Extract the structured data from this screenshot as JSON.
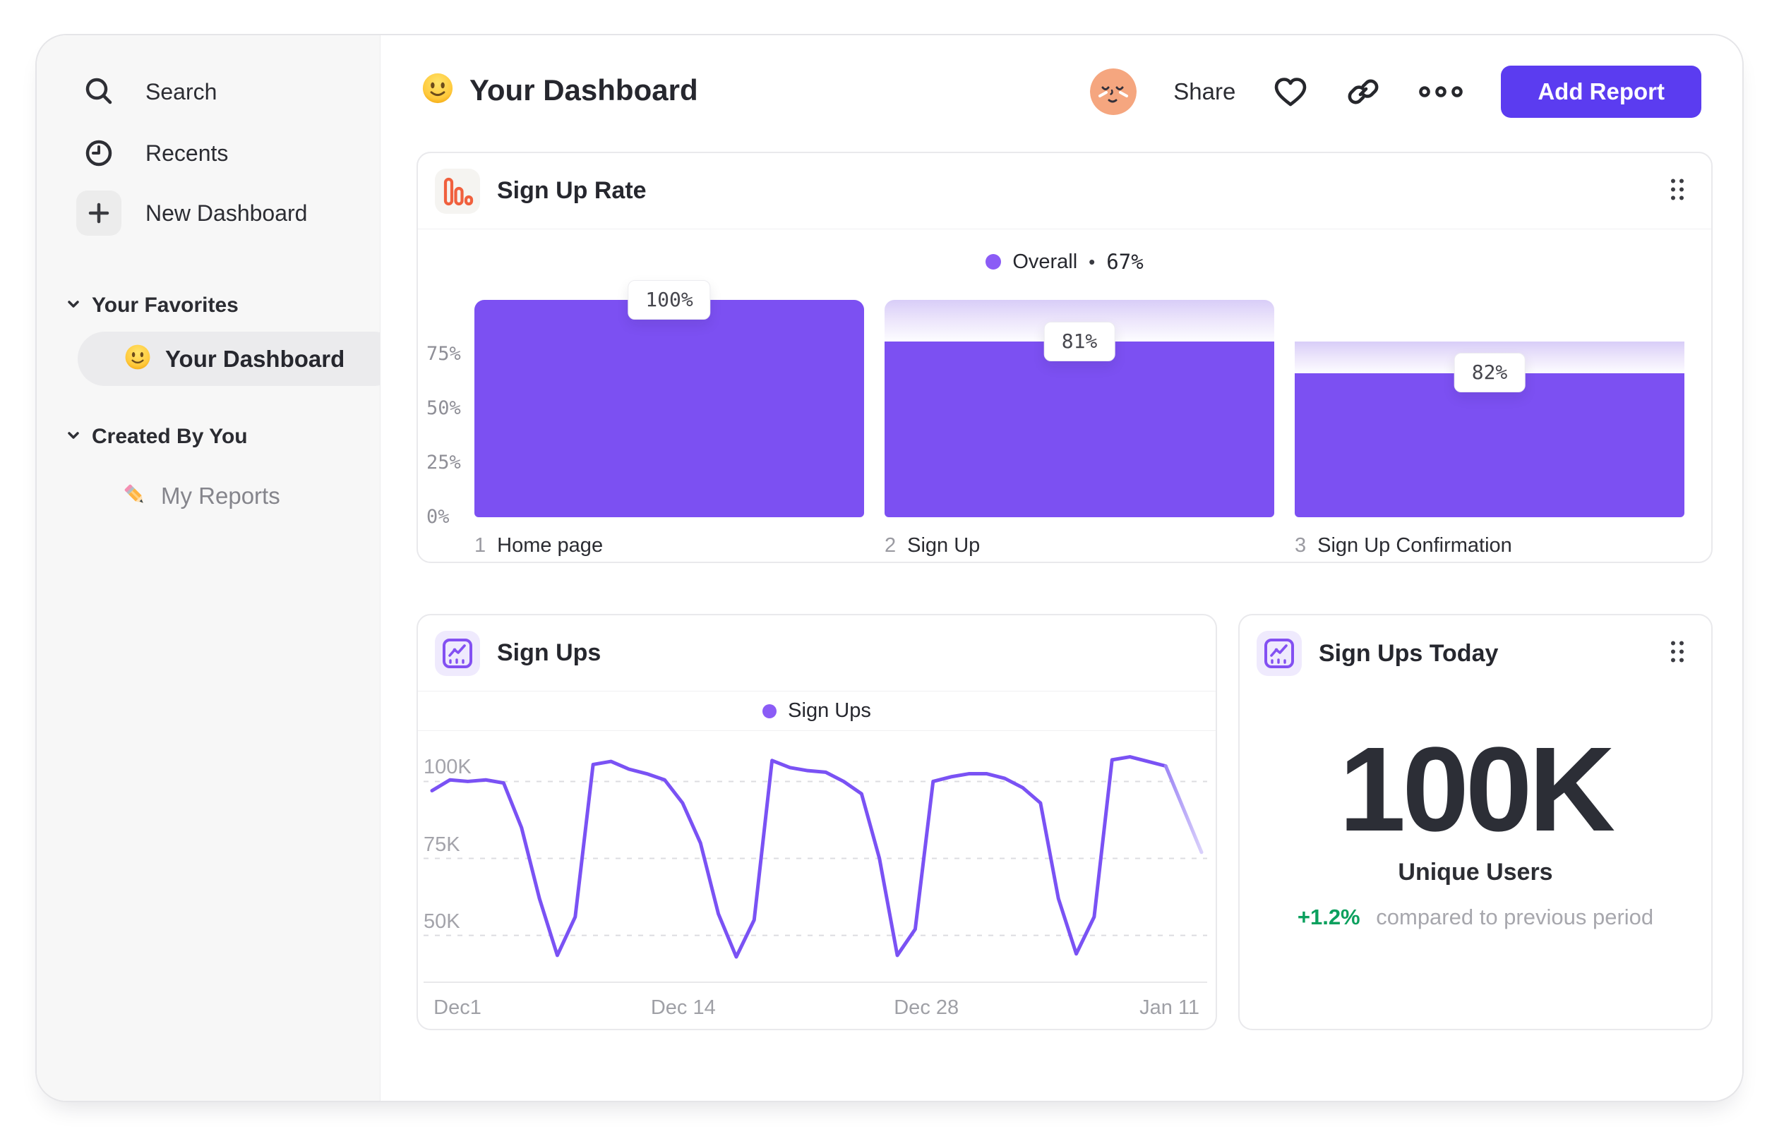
{
  "sidebar": {
    "items": [
      {
        "label": "Search"
      },
      {
        "label": "Recents"
      },
      {
        "label": "New Dashboard"
      }
    ],
    "sections": [
      {
        "title": "Your Favorites",
        "items": [
          {
            "label": "Your Dashboard",
            "selected": true
          }
        ]
      },
      {
        "title": "Created By You",
        "items": [
          {
            "label": "My Reports",
            "selected": false
          }
        ]
      }
    ]
  },
  "header": {
    "title": "Your Dashboard",
    "share_label": "Share",
    "add_report_label": "Add Report"
  },
  "cards": {
    "signup_rate": {
      "title": "Sign Up Rate",
      "legend": {
        "label": "Overall",
        "separator": "•",
        "value": "67%"
      }
    },
    "signups": {
      "title": "Sign Ups",
      "legend": {
        "label": "Sign Ups"
      }
    },
    "signups_today": {
      "title": "Sign Ups Today",
      "value": "100K",
      "caption": "Unique Users",
      "delta": "+1.2%",
      "delta_caption": "compared to previous period"
    }
  },
  "colors": {
    "bar_purple": "#7c50f2",
    "legend_dot": "#8b5cf6",
    "line_purple": "#7a52f4",
    "line_faded": "#cfc4fa",
    "button_purple": "#5b3cf0",
    "green": "#0ba05e",
    "orange_icon": "#f0603e"
  },
  "chart_data": [
    {
      "type": "bar",
      "subtype": "funnel",
      "title": "Sign Up Rate",
      "legend": "Overall",
      "overall_conversion": "67%",
      "categories": [
        "Home page",
        "Sign Up",
        "Sign Up Confirmation"
      ],
      "step_numbers": [
        "1",
        "2",
        "3"
      ],
      "values": [
        100,
        81,
        82
      ],
      "cumulative": [
        100,
        81,
        66.4
      ],
      "tooltips": [
        "100%",
        "81%",
        "82%"
      ],
      "ylim": [
        0,
        100
      ],
      "ytick_values": [
        75,
        50,
        25,
        0
      ],
      "bar_color": "#7c50f2"
    },
    {
      "type": "line",
      "title": "Sign Ups",
      "legend": "Sign Ups",
      "unit": "K",
      "ylim": [
        35,
        115
      ],
      "grid": "dashed-horizontal",
      "yticks": [
        {
          "label": "100K",
          "value": 100
        },
        {
          "label": "75K",
          "value": 75
        },
        {
          "label": "50K",
          "value": 50
        }
      ],
      "xticks": [
        {
          "label": "Dec1",
          "day": 0
        },
        {
          "label": "Dec 14",
          "day": 13
        },
        {
          "label": "Dec 28",
          "day": 27
        },
        {
          "label": "Jan 11",
          "day": 41
        }
      ],
      "series": [
        {
          "name": "Sign Ups",
          "values": [
            97,
            100.5,
            100,
            100.5,
            99.5,
            85,
            62,
            43.5,
            56,
            105.5,
            106.5,
            104,
            102.5,
            100.5,
            93,
            80,
            57,
            43,
            55,
            106.8,
            104.5,
            103.5,
            103,
            100,
            96,
            75,
            43.5,
            52,
            100,
            101.5,
            102.5,
            102.5,
            101,
            98,
            93,
            62,
            44,
            56,
            107,
            108,
            106.5,
            105,
            91,
            77
          ]
        }
      ],
      "faded_from_index": 41
    }
  ]
}
